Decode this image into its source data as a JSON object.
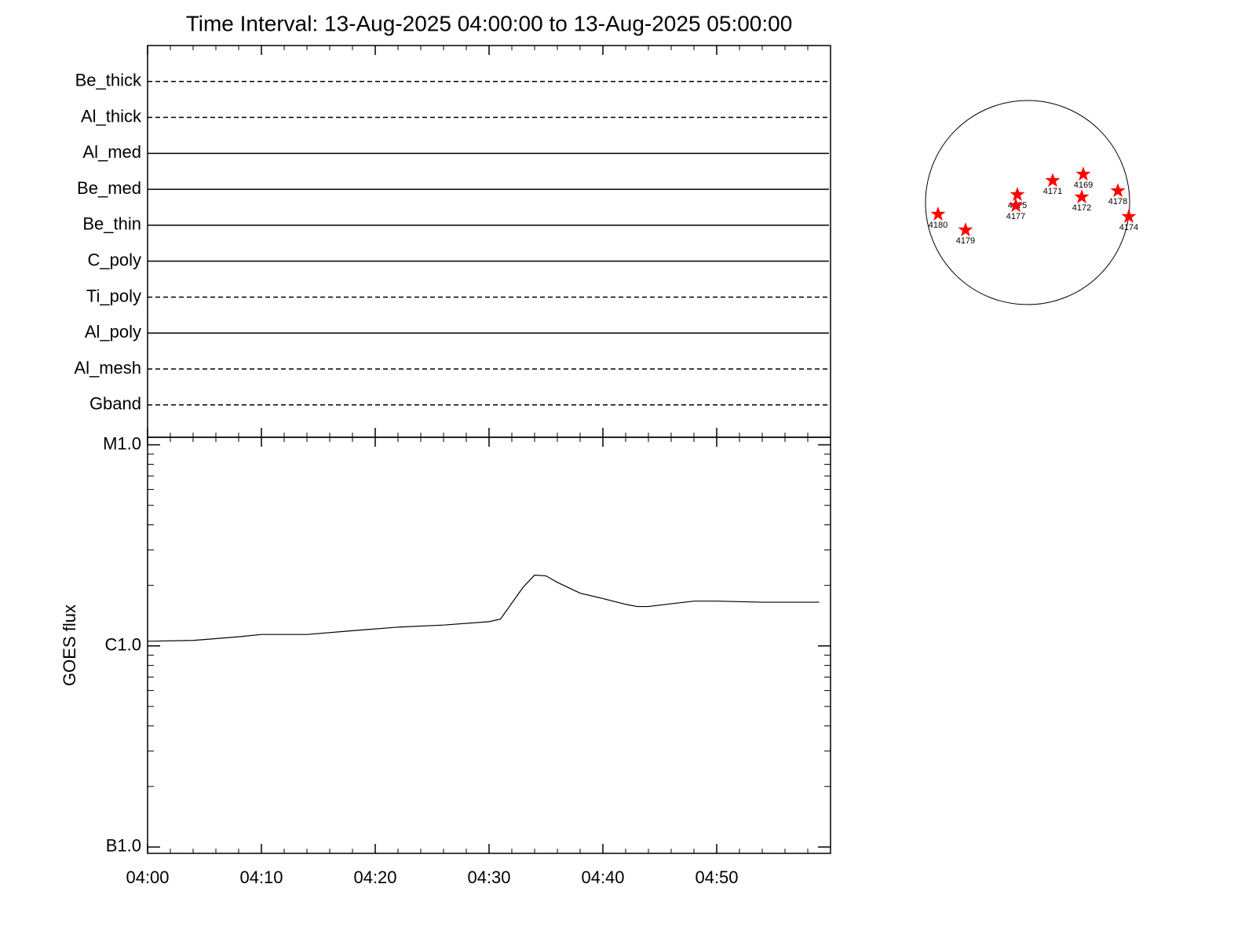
{
  "chart_data": [
    {
      "type": "timeline",
      "title": "Time Interval: 13-Aug-2025 04:00:00 to 13-Aug-2025 05:00:00",
      "categories": [
        "Be_thick",
        "Al_thick",
        "Al_med",
        "Be_med",
        "Be_thin",
        "C_poly",
        "Ti_poly",
        "Al_poly",
        "Al_mesh",
        "Gband"
      ],
      "styles": [
        "dashed",
        "dashed",
        "solid",
        "solid",
        "solid",
        "solid",
        "dashed",
        "solid",
        "dashed",
        "dashed"
      ]
    },
    {
      "type": "line",
      "ylabel": "GOES flux",
      "log_scale": true,
      "color": "#000000",
      "x": [
        "04:00",
        "04:04",
        "04:08",
        "04:10",
        "04:14",
        "04:18",
        "04:22",
        "04:26",
        "04:30",
        "04:31",
        "04:33",
        "04:34",
        "04:35",
        "04:36",
        "04:38",
        "04:40",
        "04:42",
        "04:43",
        "04:44",
        "04:46",
        "04:48",
        "04:50",
        "04:54",
        "04:59"
      ],
      "values": [
        1.055e-06,
        1.065e-06,
        1.11e-06,
        1.14e-06,
        1.14e-06,
        1.19e-06,
        1.24e-06,
        1.27e-06,
        1.32e-06,
        1.36e-06,
        1.96e-06,
        2.25e-06,
        2.23e-06,
        2.07e-06,
        1.83e-06,
        1.72e-06,
        1.61e-06,
        1.57e-06,
        1.57e-06,
        1.62e-06,
        1.67e-06,
        1.67e-06,
        1.65e-06,
        1.65e-06
      ],
      "xlim": [
        "04:00",
        "05:00"
      ],
      "xticks": [
        "04:00",
        "04:10",
        "04:20",
        "04:30",
        "04:40",
        "04:50"
      ],
      "xminorticks": [
        "04:02",
        "04:04",
        "04:06",
        "04:08",
        "04:12",
        "04:14",
        "04:16",
        "04:18",
        "04:22",
        "04:24",
        "04:26",
        "04:28",
        "04:32",
        "04:34",
        "04:36",
        "04:38",
        "04:42",
        "04:44",
        "04:46",
        "04:48",
        "04:52",
        "04:54",
        "04:56",
        "04:58"
      ],
      "ylim": [
        9.3e-08,
        1.09e-05
      ],
      "yticks": [
        {
          "value": 1e-07,
          "label": "B1.0"
        },
        {
          "value": 1e-06,
          "label": "C1.0"
        },
        {
          "value": 1e-05,
          "label": "M1.0"
        }
      ],
      "yminorticks": [
        2e-07,
        3e-07,
        4e-07,
        5e-07,
        6e-07,
        7e-07,
        8e-07,
        9e-07,
        2e-06,
        3e-06,
        4e-06,
        5e-06,
        6e-06,
        7e-06,
        8e-06,
        9e-06
      ]
    },
    {
      "type": "scatter",
      "color": "#ff0000",
      "xlim": [
        -1,
        1
      ],
      "ylim": [
        -1,
        1
      ],
      "labels": [
        "4169",
        "4171",
        "4172",
        "4175",
        "4177",
        "4178",
        "4174",
        "4180",
        "4179"
      ],
      "x": [
        0.546,
        0.246,
        0.531,
        -0.1,
        -0.115,
        0.885,
        0.992,
        -0.877,
        -0.608
      ],
      "y": [
        0.277,
        0.215,
        0.054,
        0.077,
        -0.031,
        0.115,
        -0.138,
        -0.115,
        -0.269
      ]
    }
  ]
}
